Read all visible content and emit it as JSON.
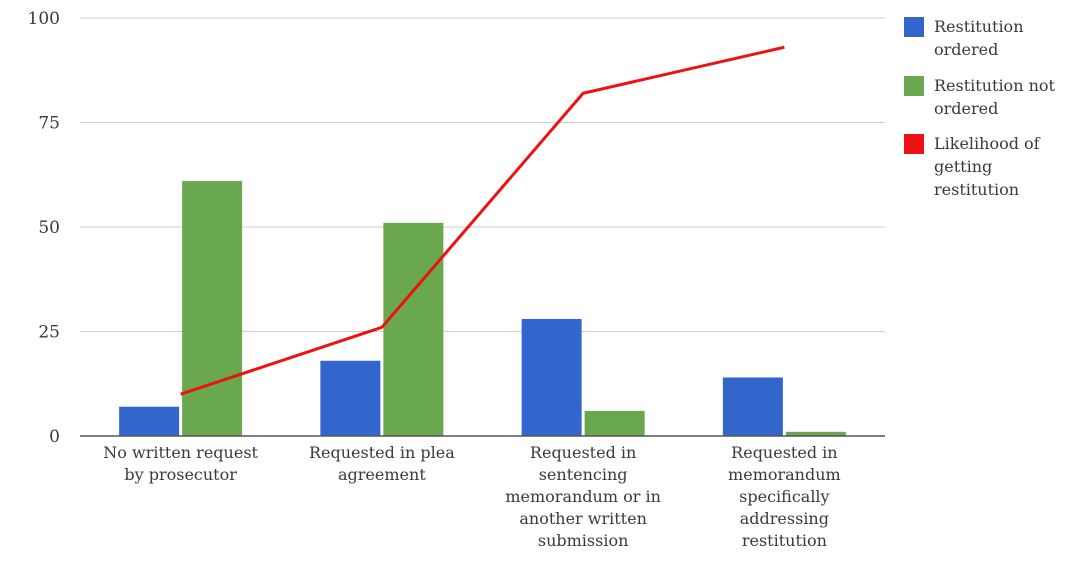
{
  "chart_data": {
    "type": "bar",
    "categories": [
      "No written request by prosecutor",
      "Requested in plea agreement",
      "Requested in sentencing memorandum or in another written submission",
      "Requested in memorandum specifically addressing restitution"
    ],
    "category_label_lines": [
      [
        "No written request",
        "by prosecutor"
      ],
      [
        "Requested in plea",
        "agreement"
      ],
      [
        "Requested in",
        "sentencing",
        "memorandum or in",
        "another written",
        "submission"
      ],
      [
        "Requested in",
        "memorandum",
        "specifically",
        "addressing",
        "restitution"
      ]
    ],
    "series": [
      {
        "name": "Restitution ordered",
        "type": "bar",
        "color": "#3366cc",
        "values": [
          7,
          18,
          28,
          14
        ]
      },
      {
        "name": "Restitution not ordered",
        "type": "bar",
        "color": "#6aa84f",
        "values": [
          61,
          51,
          6,
          1
        ]
      },
      {
        "name": "Likelihood of getting restitution",
        "type": "line",
        "color": "#ee1111",
        "values": [
          10,
          26,
          82,
          93
        ]
      }
    ],
    "legend": [
      {
        "lines": [
          "Restitution",
          "ordered"
        ],
        "color": "#3366cc"
      },
      {
        "lines": [
          "Restitution not",
          "ordered"
        ],
        "color": "#6aa84f"
      },
      {
        "lines": [
          "Likelihood of",
          "getting",
          "restitution"
        ],
        "color": "#ee1111"
      }
    ],
    "legend_position": "right",
    "ylim": [
      0,
      100
    ],
    "yticks": [
      0,
      25,
      50,
      75,
      100
    ],
    "grid": true,
    "title": "",
    "xlabel": "",
    "ylabel": ""
  }
}
